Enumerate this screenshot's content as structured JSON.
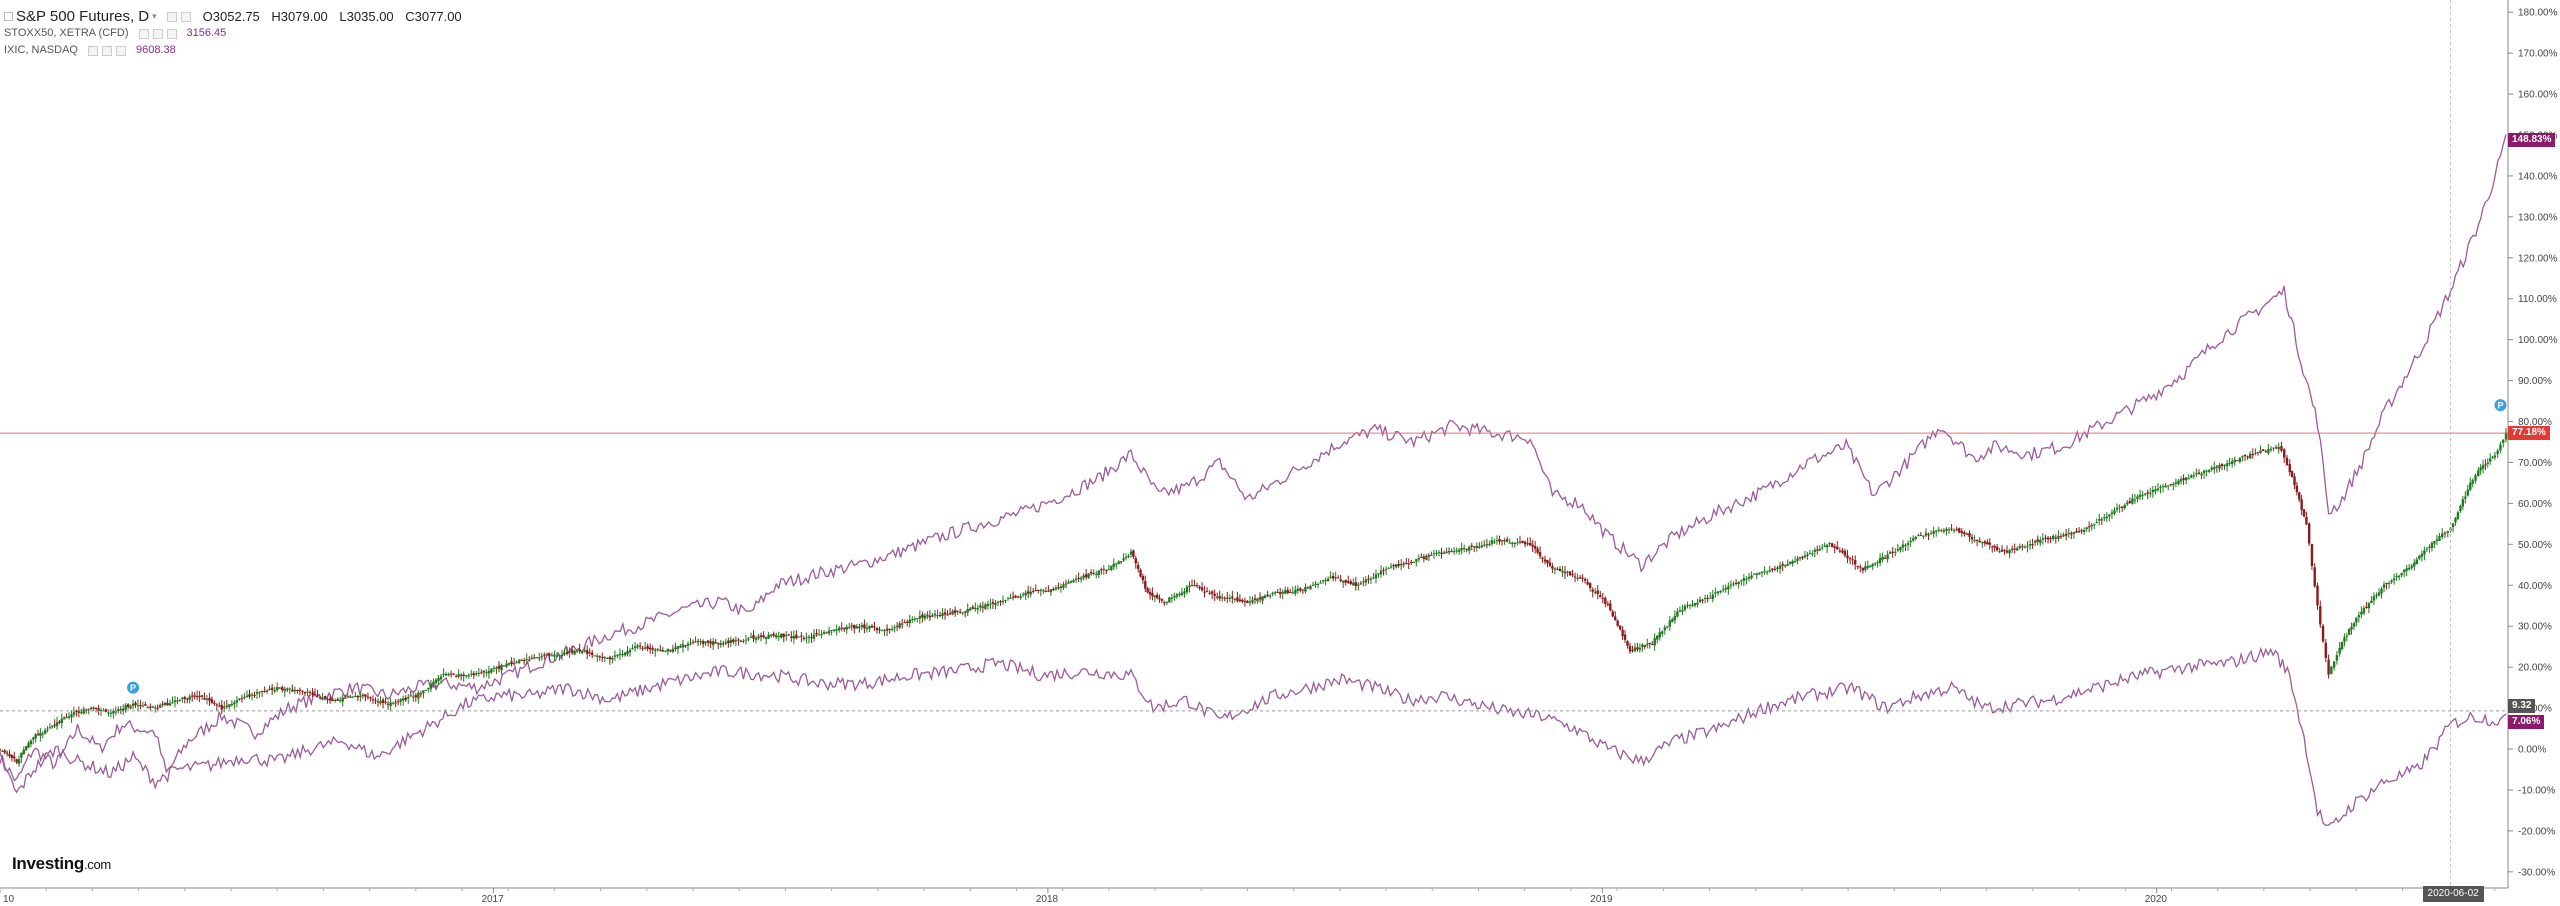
{
  "legend": {
    "main": {
      "title": "S&P 500 Futures, D",
      "open_label": "O",
      "open": "3052.75",
      "high_label": "H",
      "high": "3079.00",
      "low_label": "L",
      "low": "3035.00",
      "close_label": "C",
      "close": "3077.00"
    },
    "comparisons": [
      {
        "name": "STOXX50, XETRA (CFD)",
        "value": "3156.45"
      },
      {
        "name": "IXIC, NASDAQ",
        "value": "9608.38"
      }
    ]
  },
  "logo": {
    "brand": "Investing",
    "suffix": ".com"
  },
  "crosshair_date": "2020-06-02",
  "axis_tags": {
    "nasdaq": "148.83%",
    "spx": "77.18%",
    "crosshair": "9.32",
    "stoxx": "7.06%"
  },
  "colors": {
    "up": "#1e7a1e",
    "down": "#8b1a1a",
    "compare": "#9b5a9b",
    "last_line": "#e57373",
    "spx_tag": "#e53935",
    "compare_tag": "#8b1a6b",
    "crosshair_tag": "#555555"
  },
  "chart_data": {
    "type": "line",
    "x_ticks": [
      "10",
      "2017",
      "2018",
      "2019",
      "2020"
    ],
    "y_ticks": [
      "-30.00%",
      "-20.00%",
      "-10.00%",
      "0.00%",
      "10.00%",
      "20.00%",
      "30.00%",
      "40.00%",
      "50.00%",
      "60.00%",
      "70.00%",
      "80.00%",
      "90.00%",
      "100.00%",
      "110.00%",
      "120.00%",
      "130.00%",
      "140.00%",
      "150.00%",
      "160.00%",
      "170.00%",
      "180.00%"
    ],
    "ylim": [
      -32,
      182
    ],
    "xlim": [
      2016.0,
      2020.52
    ],
    "series": [
      {
        "name": "S&P 500 Futures",
        "style": "candles",
        "points": [
          [
            2016.0,
            0
          ],
          [
            2016.03,
            -3
          ],
          [
            2016.06,
            3
          ],
          [
            2016.09,
            5
          ],
          [
            2016.12,
            8
          ],
          [
            2016.16,
            10
          ],
          [
            2016.2,
            9
          ],
          [
            2016.24,
            11
          ],
          [
            2016.28,
            10
          ],
          [
            2016.32,
            12
          ],
          [
            2016.36,
            13
          ],
          [
            2016.4,
            10
          ],
          [
            2016.45,
            13
          ],
          [
            2016.5,
            15
          ],
          [
            2016.55,
            14
          ],
          [
            2016.6,
            12
          ],
          [
            2016.65,
            13
          ],
          [
            2016.7,
            11
          ],
          [
            2016.75,
            13
          ],
          [
            2016.8,
            18
          ],
          [
            2016.85,
            18
          ],
          [
            2016.9,
            20
          ],
          [
            2016.95,
            22
          ],
          [
            2017.0,
            23
          ],
          [
            2017.05,
            24
          ],
          [
            2017.1,
            22
          ],
          [
            2017.15,
            25
          ],
          [
            2017.2,
            24
          ],
          [
            2017.25,
            26
          ],
          [
            2017.3,
            26
          ],
          [
            2017.35,
            27
          ],
          [
            2017.4,
            28
          ],
          [
            2017.45,
            27
          ],
          [
            2017.5,
            29
          ],
          [
            2017.55,
            30
          ],
          [
            2017.6,
            29
          ],
          [
            2017.65,
            32
          ],
          [
            2017.7,
            33
          ],
          [
            2017.75,
            34
          ],
          [
            2017.8,
            36
          ],
          [
            2017.85,
            38
          ],
          [
            2017.9,
            39
          ],
          [
            2017.95,
            42
          ],
          [
            2018.0,
            44
          ],
          [
            2018.04,
            48
          ],
          [
            2018.07,
            38
          ],
          [
            2018.1,
            36
          ],
          [
            2018.15,
            40
          ],
          [
            2018.2,
            37
          ],
          [
            2018.25,
            36
          ],
          [
            2018.3,
            38
          ],
          [
            2018.35,
            39
          ],
          [
            2018.4,
            42
          ],
          [
            2018.45,
            40
          ],
          [
            2018.5,
            44
          ],
          [
            2018.55,
            46
          ],
          [
            2018.6,
            48
          ],
          [
            2018.65,
            49
          ],
          [
            2018.7,
            51
          ],
          [
            2018.76,
            50
          ],
          [
            2018.8,
            44
          ],
          [
            2018.85,
            42
          ],
          [
            2018.9,
            35
          ],
          [
            2018.94,
            24
          ],
          [
            2018.98,
            26
          ],
          [
            2019.03,
            34
          ],
          [
            2019.08,
            37
          ],
          [
            2019.15,
            42
          ],
          [
            2019.22,
            45
          ],
          [
            2019.3,
            50
          ],
          [
            2019.36,
            44
          ],
          [
            2019.4,
            47
          ],
          [
            2019.46,
            52
          ],
          [
            2019.52,
            54
          ],
          [
            2019.58,
            50
          ],
          [
            2019.62,
            48
          ],
          [
            2019.68,
            51
          ],
          [
            2019.75,
            53
          ],
          [
            2019.8,
            57
          ],
          [
            2019.86,
            62
          ],
          [
            2019.92,
            65
          ],
          [
            2019.98,
            68
          ],
          [
            2020.04,
            71
          ],
          [
            2020.11,
            74
          ],
          [
            2020.13,
            68
          ],
          [
            2020.16,
            55
          ],
          [
            2020.18,
            35
          ],
          [
            2020.2,
            18
          ],
          [
            2020.22,
            25
          ],
          [
            2020.25,
            32
          ],
          [
            2020.3,
            40
          ],
          [
            2020.35,
            45
          ],
          [
            2020.4,
            52
          ],
          [
            2020.42,
            54
          ],
          [
            2020.46,
            66
          ],
          [
            2020.47,
            68
          ],
          [
            2020.5,
            72
          ],
          [
            2020.52,
            77
          ]
        ]
      },
      {
        "name": "IXIC, NASDAQ",
        "style": "line",
        "points": [
          [
            2016.0,
            -2
          ],
          [
            2016.03,
            -8
          ],
          [
            2016.06,
            0
          ],
          [
            2016.1,
            -4
          ],
          [
            2016.14,
            5
          ],
          [
            2016.18,
            0
          ],
          [
            2016.22,
            6
          ],
          [
            2016.28,
            4
          ],
          [
            2016.3,
            -6
          ],
          [
            2016.34,
            2
          ],
          [
            2016.4,
            8
          ],
          [
            2016.46,
            4
          ],
          [
            2016.52,
            10
          ],
          [
            2016.58,
            13
          ],
          [
            2016.64,
            15
          ],
          [
            2016.7,
            13
          ],
          [
            2016.75,
            15
          ],
          [
            2016.8,
            16
          ],
          [
            2016.86,
            15
          ],
          [
            2016.92,
            18
          ],
          [
            2016.97,
            21
          ],
          [
            2017.03,
            24
          ],
          [
            2017.1,
            28
          ],
          [
            2017.17,
            31
          ],
          [
            2017.23,
            34
          ],
          [
            2017.3,
            36
          ],
          [
            2017.35,
            33
          ],
          [
            2017.4,
            40
          ],
          [
            2017.48,
            43
          ],
          [
            2017.55,
            45
          ],
          [
            2017.62,
            48
          ],
          [
            2017.7,
            52
          ],
          [
            2017.77,
            55
          ],
          [
            2017.85,
            58
          ],
          [
            2017.92,
            62
          ],
          [
            2017.98,
            66
          ],
          [
            2018.04,
            72
          ],
          [
            2018.09,
            62
          ],
          [
            2018.14,
            64
          ],
          [
            2018.2,
            70
          ],
          [
            2018.25,
            61
          ],
          [
            2018.3,
            65
          ],
          [
            2018.36,
            70
          ],
          [
            2018.42,
            75
          ],
          [
            2018.48,
            78
          ],
          [
            2018.55,
            75
          ],
          [
            2018.62,
            79
          ],
          [
            2018.7,
            77
          ],
          [
            2018.76,
            76
          ],
          [
            2018.8,
            62
          ],
          [
            2018.85,
            60
          ],
          [
            2018.9,
            52
          ],
          [
            2018.96,
            45
          ],
          [
            2019.02,
            52
          ],
          [
            2019.1,
            58
          ],
          [
            2019.18,
            63
          ],
          [
            2019.26,
            70
          ],
          [
            2019.33,
            74
          ],
          [
            2019.38,
            62
          ],
          [
            2019.44,
            70
          ],
          [
            2019.5,
            79
          ],
          [
            2019.56,
            71
          ],
          [
            2019.6,
            74
          ],
          [
            2019.66,
            72
          ],
          [
            2019.72,
            74
          ],
          [
            2019.8,
            80
          ],
          [
            2019.88,
            86
          ],
          [
            2019.94,
            92
          ],
          [
            2020.0,
            100
          ],
          [
            2020.06,
            106
          ],
          [
            2020.12,
            112
          ],
          [
            2020.15,
            95
          ],
          [
            2020.18,
            80
          ],
          [
            2020.2,
            58
          ],
          [
            2020.22,
            60
          ],
          [
            2020.26,
            70
          ],
          [
            2020.3,
            82
          ],
          [
            2020.36,
            96
          ],
          [
            2020.42,
            112
          ],
          [
            2020.47,
            128
          ],
          [
            2020.5,
            140
          ],
          [
            2020.52,
            148.83
          ]
        ]
      },
      {
        "name": "STOXX50, XETRA (CFD)",
        "style": "line",
        "points": [
          [
            2016.0,
            -2
          ],
          [
            2016.03,
            -11
          ],
          [
            2016.06,
            -5
          ],
          [
            2016.1,
            0
          ],
          [
            2016.14,
            -3
          ],
          [
            2016.2,
            -6
          ],
          [
            2016.24,
            -2
          ],
          [
            2016.28,
            -8
          ],
          [
            2016.32,
            -5
          ],
          [
            2016.38,
            -4
          ],
          [
            2016.44,
            -2
          ],
          [
            2016.5,
            -3
          ],
          [
            2016.56,
            0
          ],
          [
            2016.62,
            2
          ],
          [
            2016.68,
            -2
          ],
          [
            2016.74,
            3
          ],
          [
            2016.78,
            6
          ],
          [
            2016.84,
            11
          ],
          [
            2016.9,
            13
          ],
          [
            2016.96,
            13
          ],
          [
            2017.02,
            15
          ],
          [
            2017.1,
            12
          ],
          [
            2017.2,
            16
          ],
          [
            2017.3,
            19
          ],
          [
            2017.4,
            18
          ],
          [
            2017.48,
            16
          ],
          [
            2017.56,
            16
          ],
          [
            2017.64,
            18
          ],
          [
            2017.72,
            19
          ],
          [
            2017.8,
            21
          ],
          [
            2017.88,
            18
          ],
          [
            2017.96,
            19
          ],
          [
            2018.04,
            18
          ],
          [
            2018.08,
            10
          ],
          [
            2018.14,
            12
          ],
          [
            2018.2,
            7
          ],
          [
            2018.25,
            10
          ],
          [
            2018.3,
            13
          ],
          [
            2018.36,
            15
          ],
          [
            2018.42,
            17
          ],
          [
            2018.48,
            15
          ],
          [
            2018.54,
            12
          ],
          [
            2018.6,
            13
          ],
          [
            2018.66,
            11
          ],
          [
            2018.72,
            9
          ],
          [
            2018.78,
            8
          ],
          [
            2018.84,
            5
          ],
          [
            2018.9,
            0
          ],
          [
            2018.96,
            -3
          ],
          [
            2019.02,
            2
          ],
          [
            2019.1,
            5
          ],
          [
            2019.18,
            10
          ],
          [
            2019.26,
            13
          ],
          [
            2019.34,
            15
          ],
          [
            2019.4,
            10
          ],
          [
            2019.46,
            13
          ],
          [
            2019.52,
            15
          ],
          [
            2019.58,
            10
          ],
          [
            2019.64,
            11
          ],
          [
            2019.7,
            12
          ],
          [
            2019.78,
            15
          ],
          [
            2019.86,
            18
          ],
          [
            2019.94,
            20
          ],
          [
            2020.02,
            21
          ],
          [
            2020.1,
            24
          ],
          [
            2020.13,
            18
          ],
          [
            2020.16,
            0
          ],
          [
            2020.18,
            -15
          ],
          [
            2020.2,
            -20
          ],
          [
            2020.24,
            -14
          ],
          [
            2020.3,
            -8
          ],
          [
            2020.36,
            -5
          ],
          [
            2020.4,
            2
          ],
          [
            2020.42,
            6
          ],
          [
            2020.46,
            8
          ],
          [
            2020.5,
            7.06
          ],
          [
            2020.52,
            7.06
          ]
        ]
      }
    ]
  }
}
